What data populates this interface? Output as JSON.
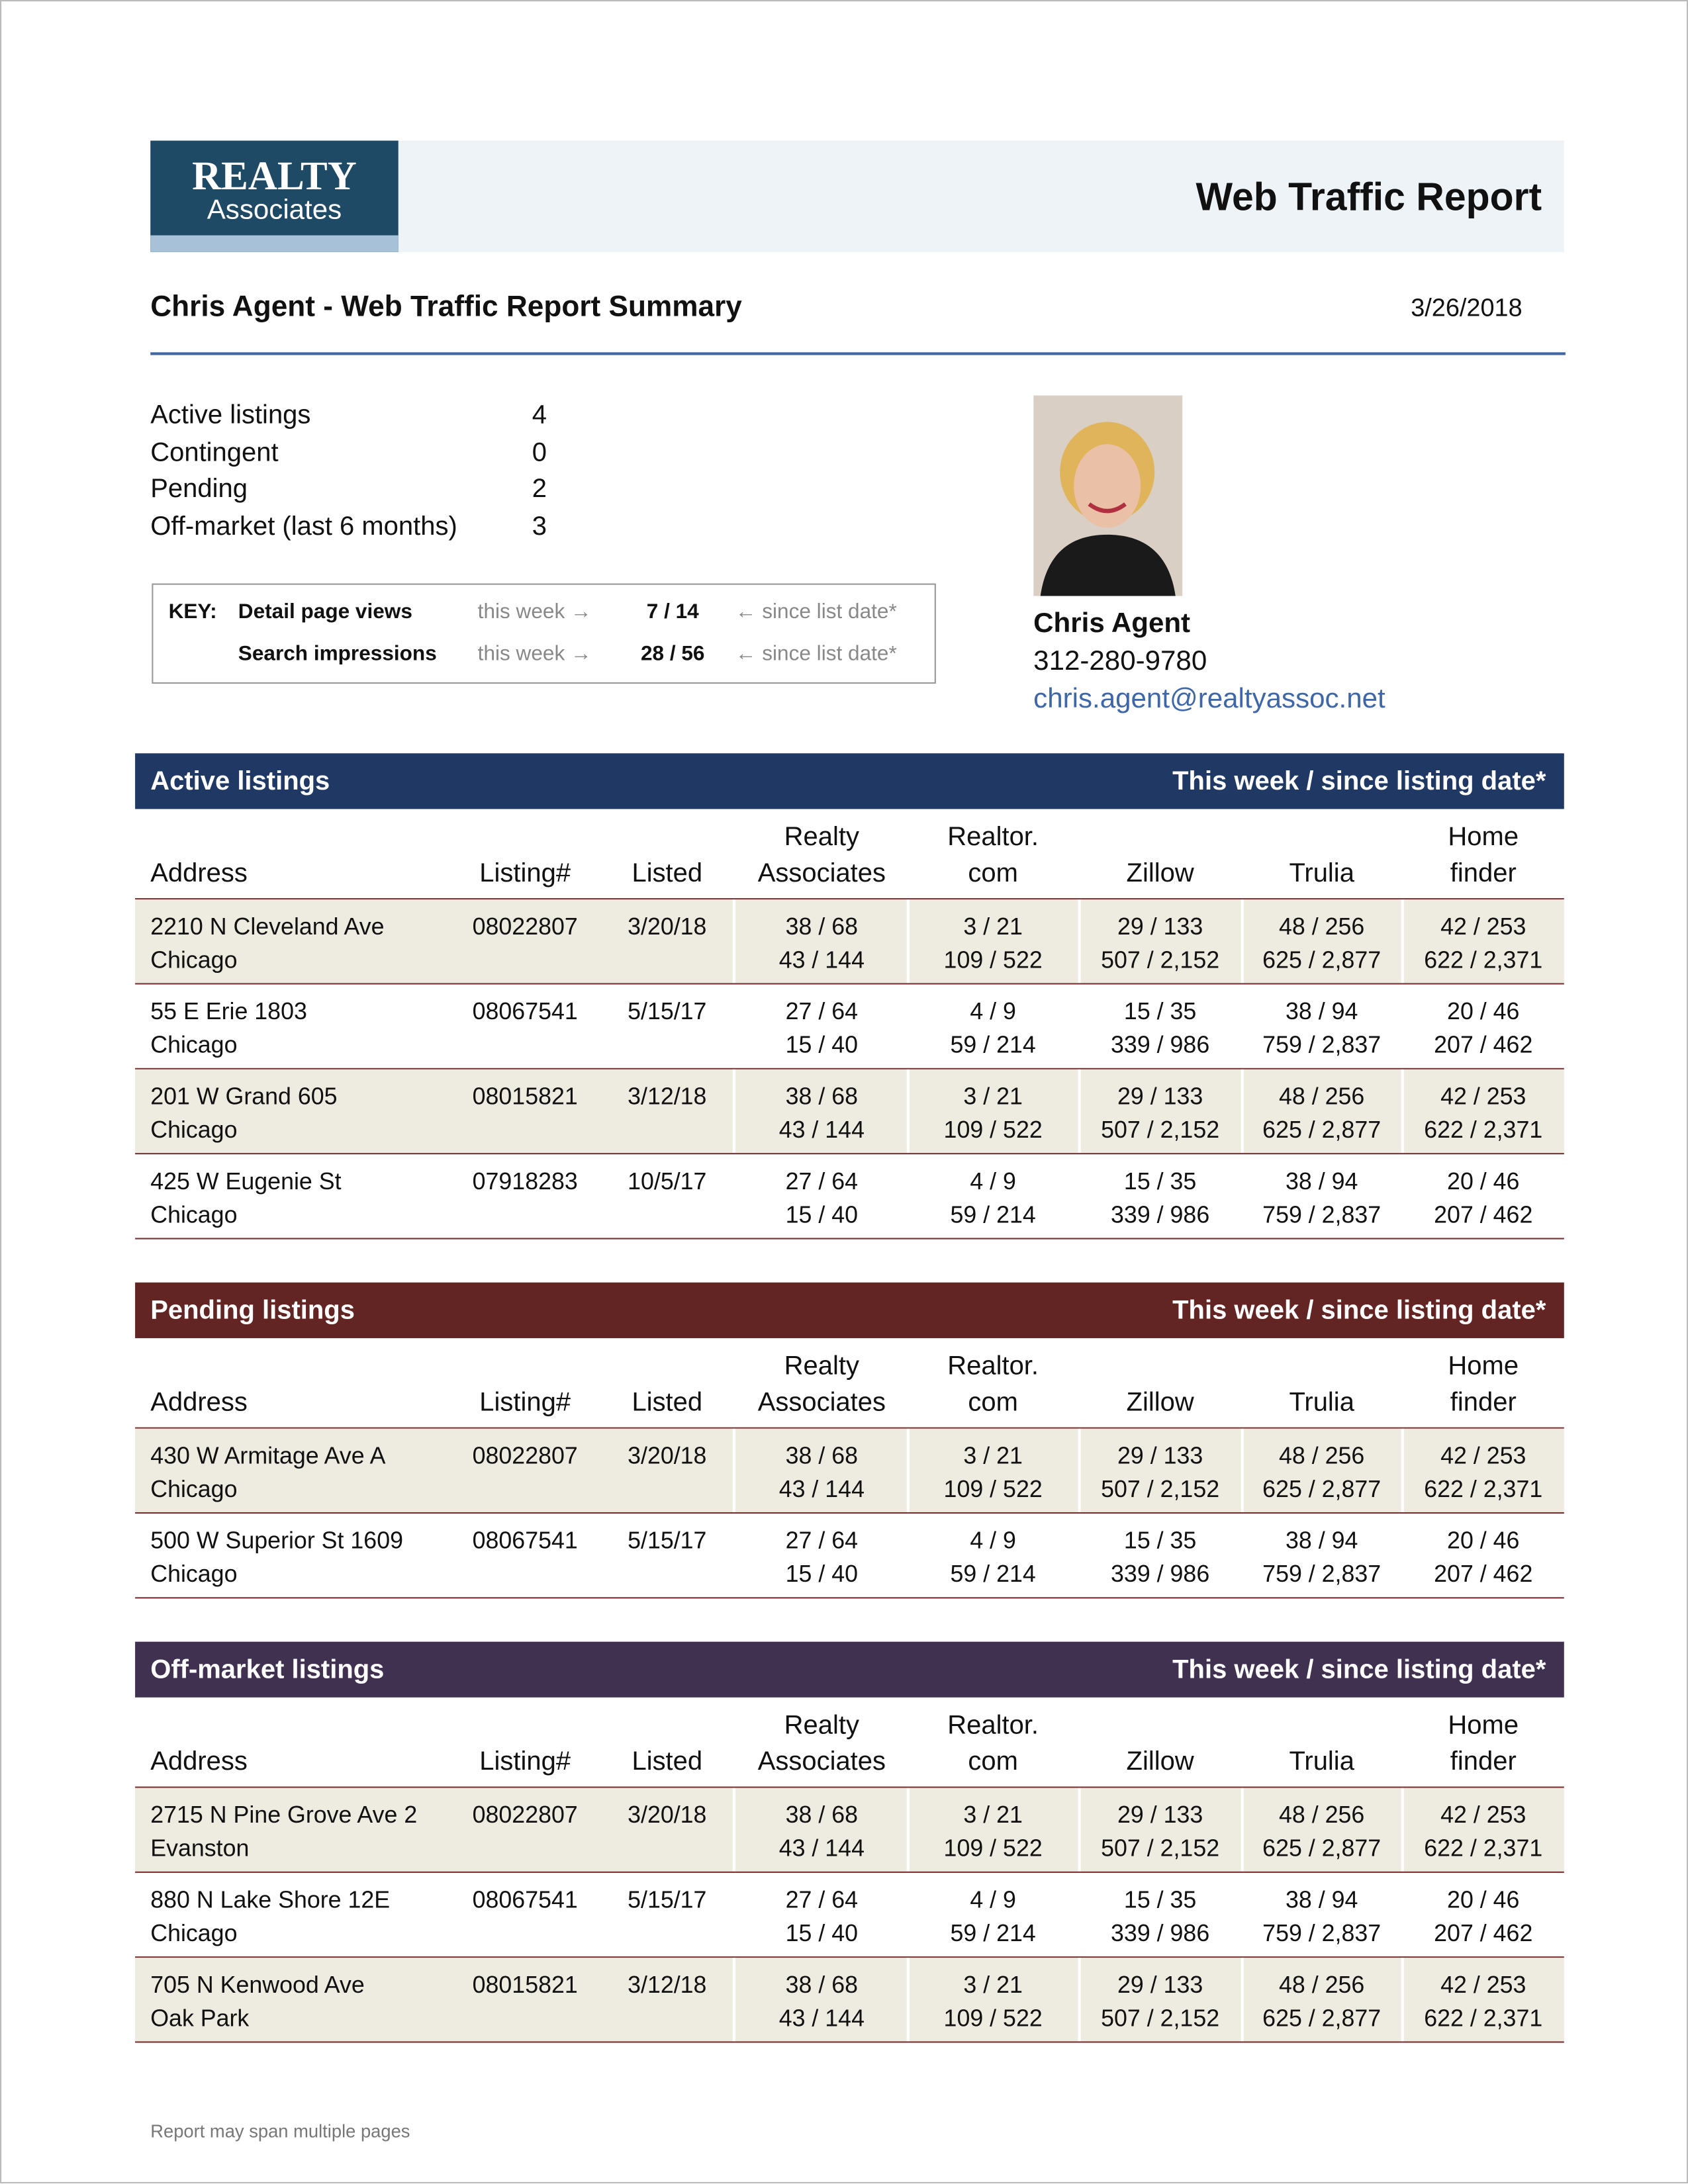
{
  "header": {
    "logo": {
      "line1": "REALTY",
      "line2": "Associates"
    },
    "title": "Web Traffic Report"
  },
  "summary": {
    "title": "Chris Agent - Web Traffic Report Summary",
    "date": "3/26/2018",
    "counts": [
      {
        "label": "Active listings",
        "value": 4
      },
      {
        "label": "Contingent",
        "value": 0
      },
      {
        "label": "Pending",
        "value": 2
      },
      {
        "label": "Off-market (last 6 months)",
        "value": 3
      }
    ]
  },
  "key": {
    "label": "KEY:",
    "rows": [
      {
        "name": "Detail page views",
        "this_week": "this week →",
        "value": "7 / 14",
        "since": "← since list date*"
      },
      {
        "name": "Search impressions",
        "this_week": "this week →",
        "value": "28 / 56",
        "since": "← since list date*"
      }
    ]
  },
  "agent": {
    "name": "Chris Agent",
    "phone": "312-280-9780",
    "email": "chris.agent@realtyassoc.net"
  },
  "columns": [
    [
      "Address"
    ],
    [
      "Listing#"
    ],
    [
      "Listed"
    ],
    [
      "Realty",
      "Associates"
    ],
    [
      "Realtor.",
      "com"
    ],
    [
      "Zillow"
    ],
    [
      "Trulia"
    ],
    [
      "Home",
      "finder"
    ]
  ],
  "sections": [
    {
      "title": "Active listings",
      "right": "This week / since listing date*",
      "color": "#1f3864",
      "rows": [
        {
          "address": "2210 N Cleveland Ave",
          "city": "Chicago",
          "listing": "08022807",
          "listed": "3/20/18",
          "traffic": [
            [
              "38 / 68",
              "43 / 144"
            ],
            [
              "3 / 21",
              "109 / 522"
            ],
            [
              "29 / 133",
              "507 / 2,152"
            ],
            [
              "48 / 256",
              "625 / 2,877"
            ],
            [
              "42 / 253",
              "622 / 2,371"
            ]
          ]
        },
        {
          "address": "55 E Erie 1803",
          "city": "Chicago",
          "listing": "08067541",
          "listed": "5/15/17",
          "traffic": [
            [
              "27 / 64",
              "15 / 40"
            ],
            [
              "4 / 9",
              "59 / 214"
            ],
            [
              "15 / 35",
              "339 / 986"
            ],
            [
              "38 / 94",
              "759 / 2,837"
            ],
            [
              "20 / 46",
              "207 / 462"
            ]
          ]
        },
        {
          "address": "201 W Grand 605",
          "city": "Chicago",
          "listing": "08015821",
          "listed": "3/12/18",
          "traffic": [
            [
              "38 / 68",
              "43 / 144"
            ],
            [
              "3 / 21",
              "109 / 522"
            ],
            [
              "29 / 133",
              "507 / 2,152"
            ],
            [
              "48 / 256",
              "625 / 2,877"
            ],
            [
              "42 / 253",
              "622 / 2,371"
            ]
          ]
        },
        {
          "address": "425 W Eugenie St",
          "city": "Chicago",
          "listing": "07918283",
          "listed": "10/5/17",
          "traffic": [
            [
              "27 / 64",
              "15 / 40"
            ],
            [
              "4 / 9",
              "59 / 214"
            ],
            [
              "15 / 35",
              "339 / 986"
            ],
            [
              "38 / 94",
              "759 / 2,837"
            ],
            [
              "20 / 46",
              "207 / 462"
            ]
          ]
        }
      ]
    },
    {
      "title": "Pending listings",
      "right": "This week / since listing date*",
      "color": "#632523",
      "rows": [
        {
          "address": "430 W Armitage Ave A",
          "city": "Chicago",
          "listing": "08022807",
          "listed": "3/20/18",
          "traffic": [
            [
              "38 / 68",
              "43 / 144"
            ],
            [
              "3 / 21",
              "109 / 522"
            ],
            [
              "29 / 133",
              "507 / 2,152"
            ],
            [
              "48 / 256",
              "625 / 2,877"
            ],
            [
              "42 / 253",
              "622 / 2,371"
            ]
          ]
        },
        {
          "address": "500 W Superior St 1609",
          "city": "Chicago",
          "listing": "08067541",
          "listed": "5/15/17",
          "traffic": [
            [
              "27 / 64",
              "15 / 40"
            ],
            [
              "4 / 9",
              "59 / 214"
            ],
            [
              "15 / 35",
              "339 / 986"
            ],
            [
              "38 / 94",
              "759 / 2,837"
            ],
            [
              "20 / 46",
              "207 / 462"
            ]
          ]
        }
      ]
    },
    {
      "title": "Off-market listings",
      "right": "This week / since listing date*",
      "color": "#403151",
      "rows": [
        {
          "address": "2715 N Pine Grove Ave 2",
          "city": "Evanston",
          "listing": "08022807",
          "listed": "3/20/18",
          "traffic": [
            [
              "38 / 68",
              "43 / 144"
            ],
            [
              "3 / 21",
              "109 / 522"
            ],
            [
              "29 / 133",
              "507 / 2,152"
            ],
            [
              "48 / 256",
              "625 / 2,877"
            ],
            [
              "42 / 253",
              "622 / 2,371"
            ]
          ]
        },
        {
          "address": "880 N Lake Shore 12E",
          "city": "Chicago",
          "listing": "08067541",
          "listed": "5/15/17",
          "traffic": [
            [
              "27 / 64",
              "15 / 40"
            ],
            [
              "4 / 9",
              "59 / 214"
            ],
            [
              "15 / 35",
              "339 / 986"
            ],
            [
              "38 / 94",
              "759 / 2,837"
            ],
            [
              "20 / 46",
              "207 / 462"
            ]
          ]
        },
        {
          "address": "705 N Kenwood Ave",
          "city": "Oak Park",
          "listing": "08015821",
          "listed": "3/12/18",
          "traffic": [
            [
              "38 / 68",
              "43 / 144"
            ],
            [
              "3 / 21",
              "109 / 522"
            ],
            [
              "29 / 133",
              "507 / 2,152"
            ],
            [
              "48 / 256",
              "625 / 2,877"
            ],
            [
              "42 / 253",
              "622 / 2,371"
            ]
          ]
        }
      ]
    }
  ],
  "footer": "Report may span multiple pages"
}
